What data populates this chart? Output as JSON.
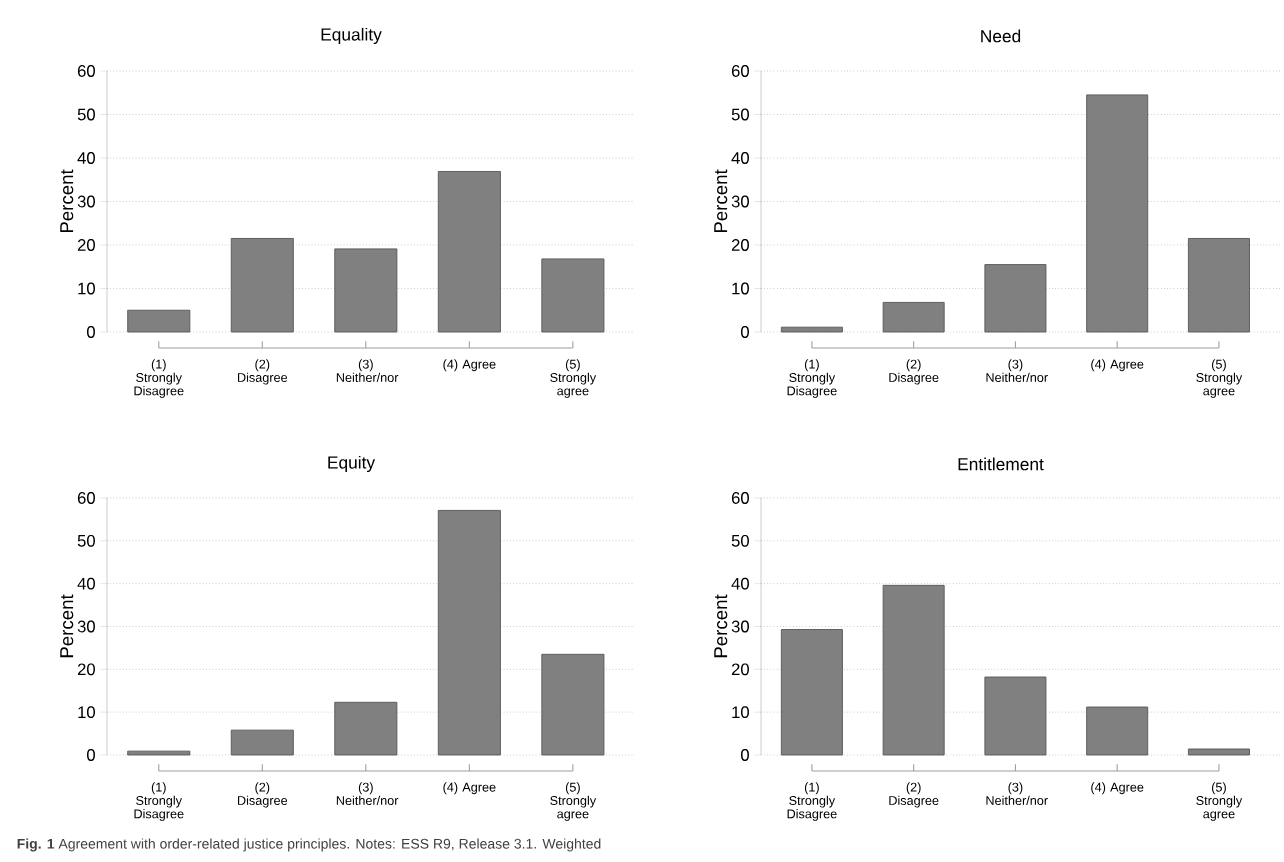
{
  "chart_data": [
    {
      "type": "bar",
      "title": "Equality",
      "ylabel": "Percent",
      "categories": [
        "(1) Strongly Disagree",
        "(2) Disagree",
        "(3) Neither/nor",
        "(4) Agree",
        "(5) Strongly agree"
      ],
      "values": [
        5.0,
        21.5,
        19.1,
        36.9,
        16.8
      ],
      "color": "#808080",
      "ylim": [
        0,
        60
      ],
      "yticks": [
        0,
        10,
        20,
        30,
        40,
        50,
        60
      ],
      "grid": "y"
    },
    {
      "type": "bar",
      "title": "Need",
      "ylabel": "Percent",
      "categories": [
        "(1) Strongly Disagree",
        "(2) Disagree",
        "(3) Neither/nor",
        "(4) Agree",
        "(5) Strongly agree"
      ],
      "values": [
        1.1,
        6.8,
        15.5,
        54.5,
        21.5
      ],
      "color": "#808080",
      "ylim": [
        0,
        60
      ],
      "yticks": [
        0,
        10,
        20,
        30,
        40,
        50,
        60
      ],
      "grid": "y"
    },
    {
      "type": "bar",
      "title": "Equity",
      "ylabel": "Percent",
      "categories": [
        "(1) Strongly Disagree",
        "(2) Disagree",
        "(3) Neither/nor",
        "(4) Agree",
        "(5) Strongly agree"
      ],
      "values": [
        0.9,
        5.8,
        12.3,
        57.1,
        23.5
      ],
      "color": "#808080",
      "ylim": [
        0,
        60
      ],
      "yticks": [
        0,
        10,
        20,
        30,
        40,
        50,
        60
      ],
      "grid": "y",
      "annotations": [
        "**Fig. 1** Agreement with order-related justice principles.  Notes: ESS R9, Release 3.1. Weighted"
      ]
    },
    {
      "type": "bar",
      "title": "Entitlement",
      "ylabel": "Percent",
      "categories": [
        "(1) Strongly Disagree",
        "(2) Disagree",
        "(3) Neither/nor",
        "(4) Agree",
        "(5) Strongly agree"
      ],
      "values": [
        29.3,
        39.6,
        18.2,
        11.2,
        1.4
      ],
      "color": "#808080",
      "ylim": [
        0,
        60
      ],
      "yticks": [
        0,
        10,
        20,
        30,
        40,
        50,
        60
      ],
      "grid": "y"
    }
  ]
}
